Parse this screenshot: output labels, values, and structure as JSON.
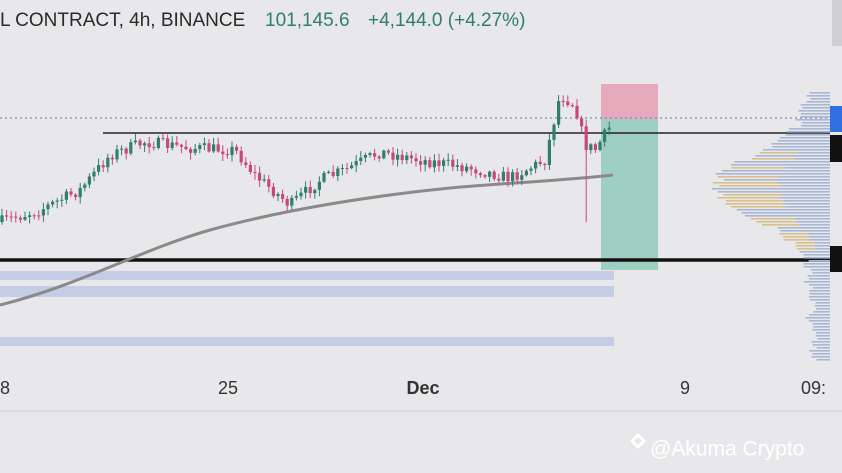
{
  "header": {
    "symbol": "L CONTRACT, 4h, BINANCE",
    "price": "101,145.6",
    "change": "+4,144.0 (+4.27%)"
  },
  "x_axis": {
    "labels": [
      "8",
      "25",
      "Dec",
      "9",
      "09:"
    ]
  },
  "watermark": "@Akuma Crypto"
}
